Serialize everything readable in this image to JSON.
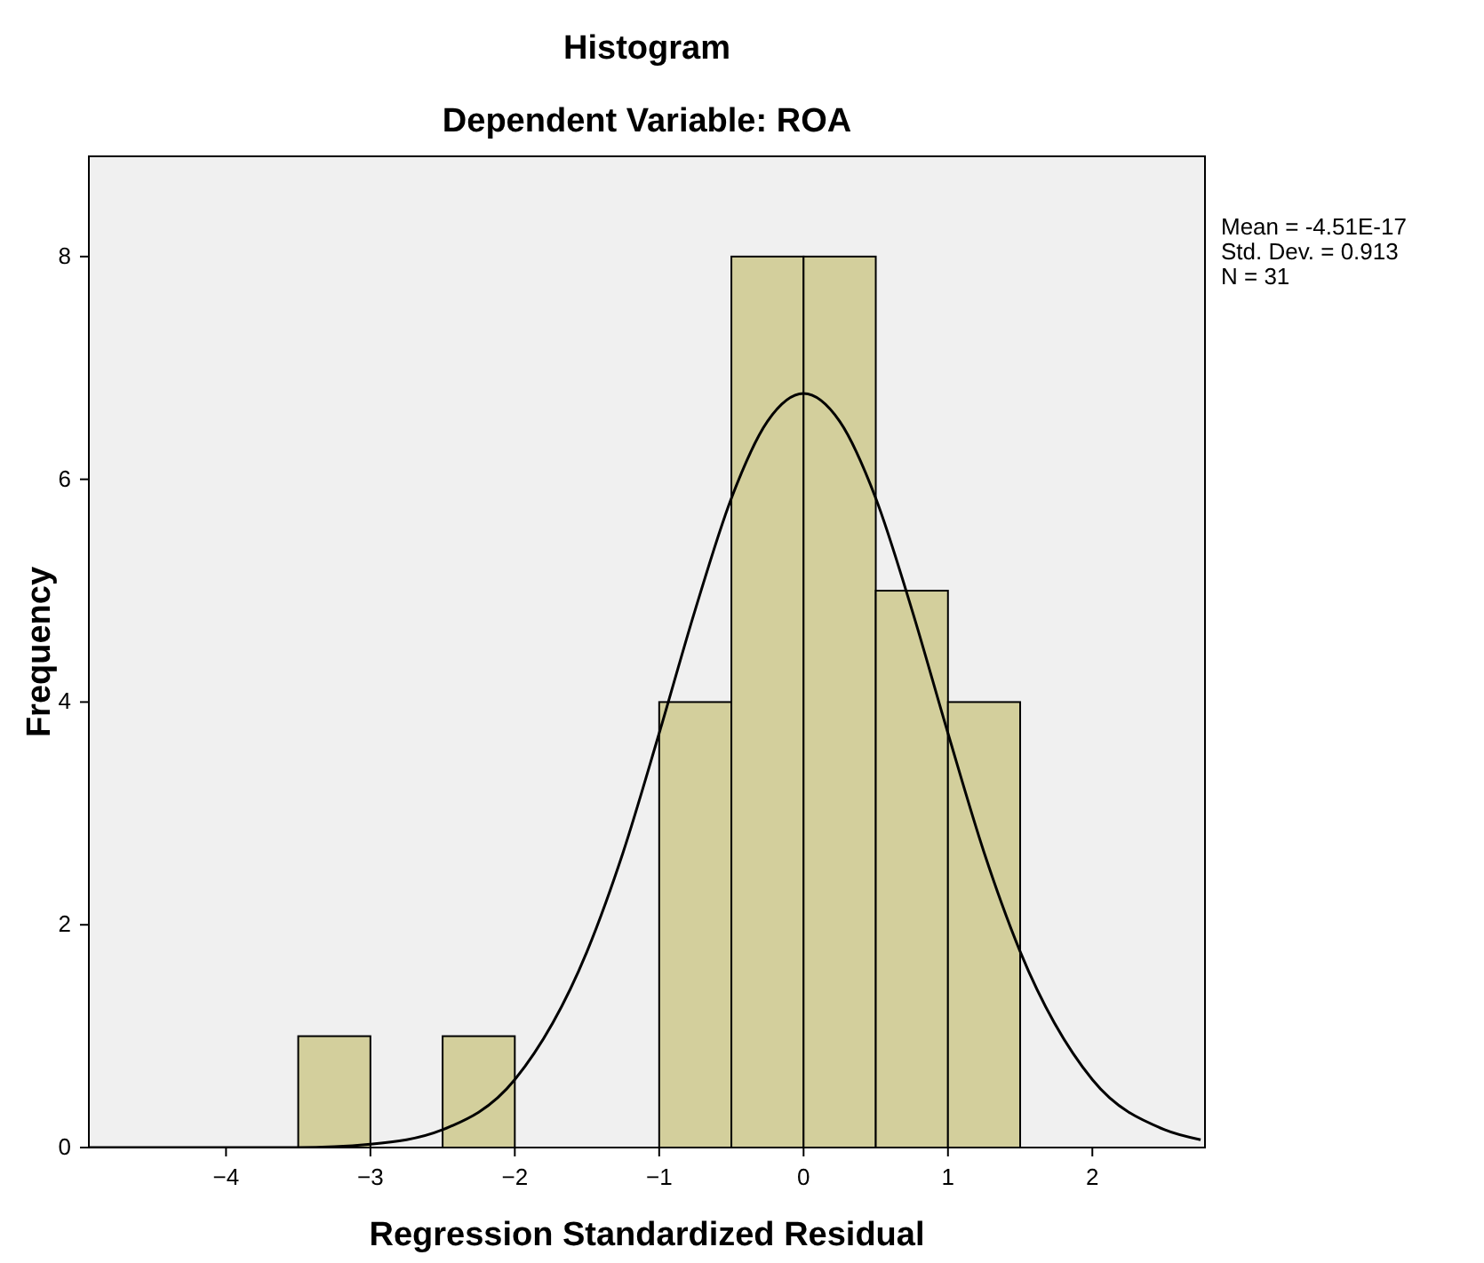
{
  "chart_data": {
    "type": "histogram",
    "title": "Histogram",
    "subtitle": "Dependent Variable: ROA",
    "xlabel": "Regression Standardized Residual",
    "ylabel": "Frequency",
    "bins": [
      -3.5,
      -3,
      -2.5,
      -2,
      -1.5,
      -1,
      -0.5,
      0,
      0.5,
      1,
      1.5
    ],
    "values": [
      1,
      0,
      1,
      0,
      0,
      4,
      8,
      8,
      5,
      4
    ],
    "color": "#d3cf9c",
    "series": [
      {
        "type": "line",
        "color": "#000000",
        "x": [
          -4.95,
          -3.5,
          -3,
          -2.5,
          -2,
          -1.5,
          -1.25,
          -1,
          -0.75,
          -0.5,
          -0.25,
          0,
          0.25,
          0.5,
          0.75,
          1,
          1.25,
          1.5,
          2,
          2.5,
          2.75
        ],
        "values": [
          0,
          0,
          0.03,
          0.16,
          0.61,
          1.76,
          2.65,
          3.72,
          4.83,
          5.83,
          6.52,
          6.77,
          6.52,
          5.83,
          4.83,
          3.72,
          2.65,
          1.76,
          0.61,
          0.16,
          0.07
        ]
      }
    ],
    "xlim": [
      -4.95,
      2.78
    ],
    "xticks": [
      -4,
      -3,
      -2,
      -1,
      0,
      1,
      2
    ],
    "ylim": [
      0,
      8.9
    ],
    "yticks": [
      0,
      2,
      4,
      6,
      8
    ],
    "grid": false,
    "annotations": [
      "Mean = -4.51E-17",
      "Std. Dev. = 0.913",
      "N = 31"
    ]
  }
}
